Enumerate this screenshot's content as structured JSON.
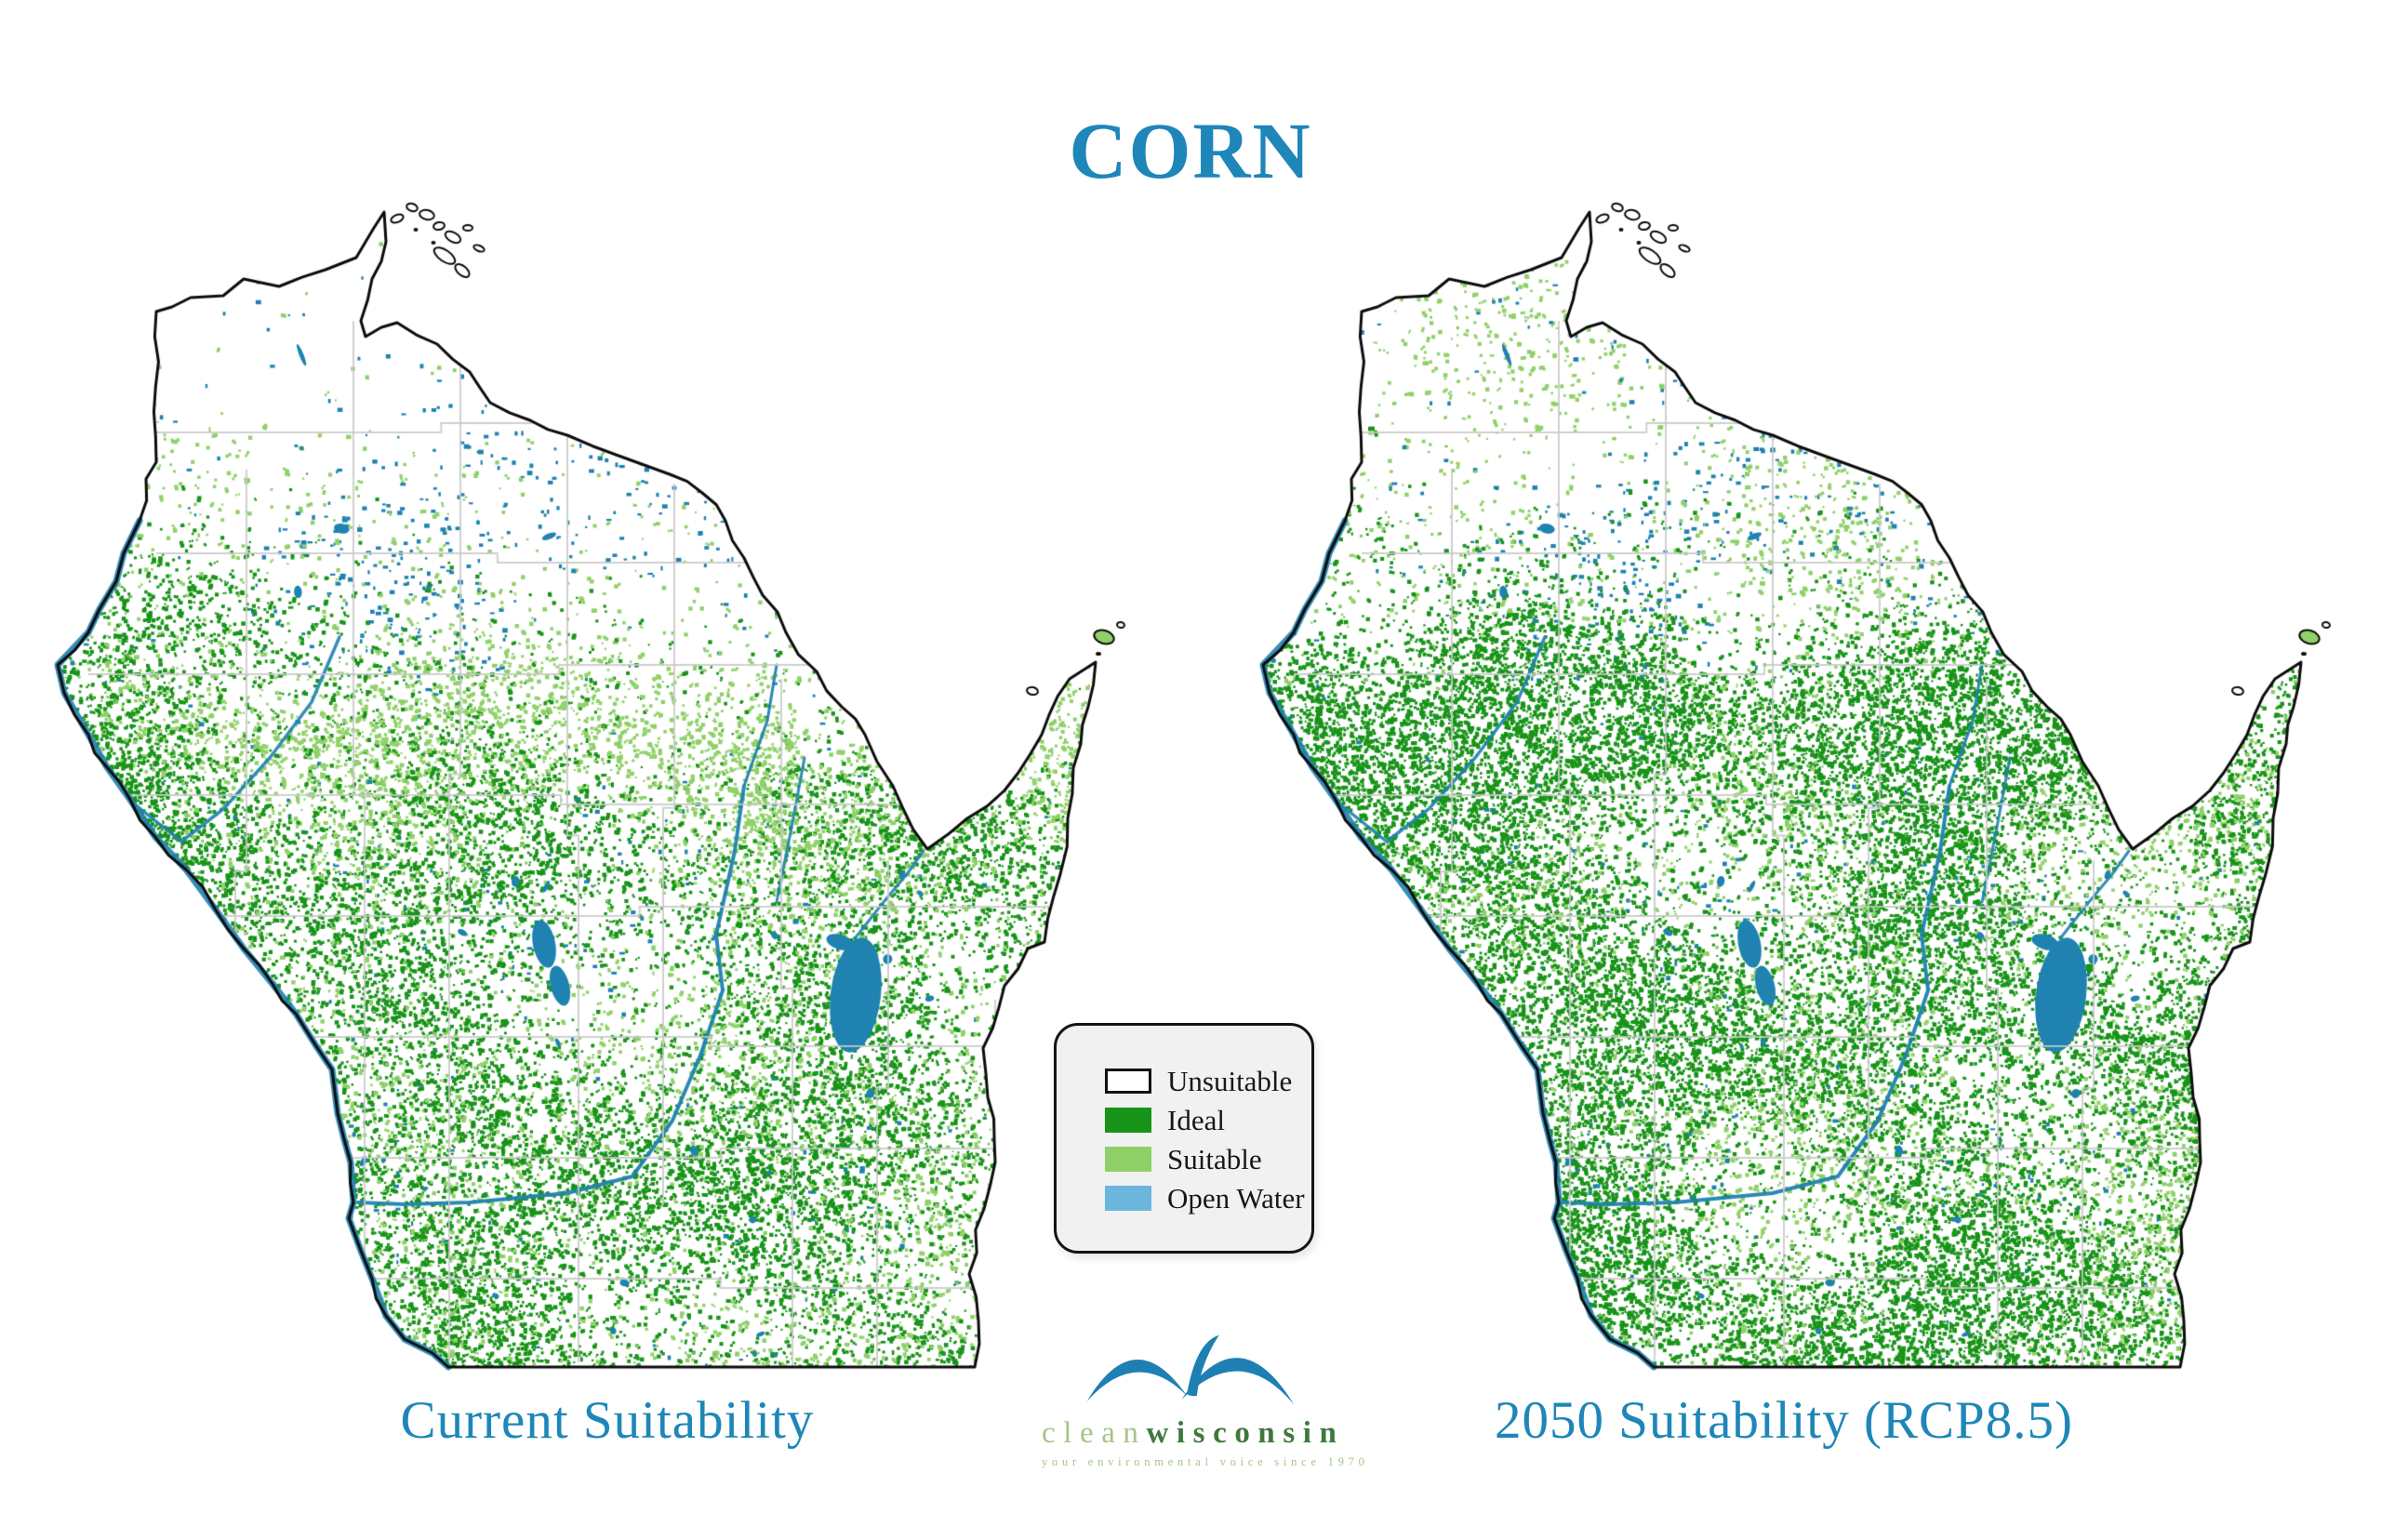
{
  "title": {
    "text": "CORN",
    "color": "#1e86b8"
  },
  "maps": [
    {
      "id": "current",
      "caption": "Current Suitability",
      "shape": "Wisconsin state outline with county boundaries"
    },
    {
      "id": "rcp85_2050",
      "caption": "2050 Suitability (RCP8.5)",
      "shape": "Wisconsin state outline with county boundaries"
    }
  ],
  "legend": {
    "items": [
      {
        "label": "Unsuitable",
        "color": "#ffffff"
      },
      {
        "label": "Ideal",
        "color": "#189418"
      },
      {
        "label": "Suitable",
        "color": "#8fd168"
      },
      {
        "label": "Open Water",
        "color": "#6cb6dd"
      }
    ]
  },
  "logo": {
    "word_light": "clean",
    "word_dark": "wisconsin",
    "tagline": "your environmental voice since 1970"
  },
  "map_data": {
    "type": "map",
    "subject": "Corn growing suitability in Wisconsin",
    "panels": [
      "Current Suitability",
      "2050 Suitability (RCP8.5)"
    ],
    "classes": [
      "Unsuitable",
      "Ideal",
      "Suitable",
      "Open Water"
    ],
    "visual_summary": {
      "current": "Ideal and suitable land concentrated in southern and western Wisconsin with a light-green suitable belt across the center; far north mostly unsuitable and dotted with lakes",
      "rcp85_2050": "Ideal land expands and densifies across southern, central and western Wisconsin; scattered suitable patches reach farther north"
    }
  }
}
